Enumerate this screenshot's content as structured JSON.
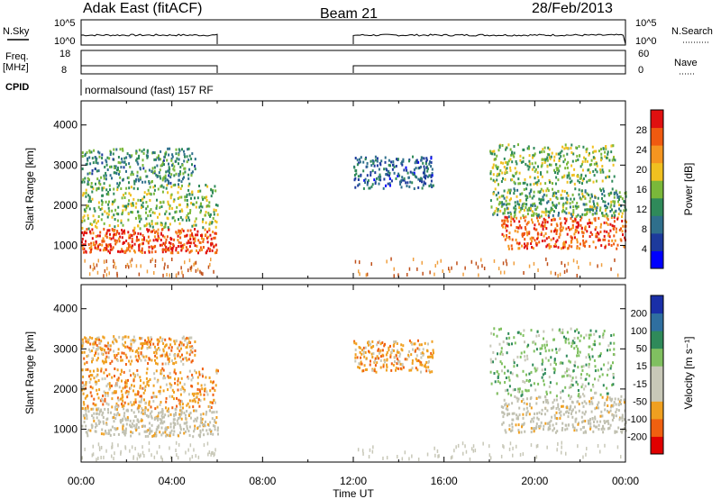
{
  "header": {
    "radar": "Adak East (fitACF)",
    "beam": "Beam 21",
    "date": "28/Feb/2013"
  },
  "top_panels": {
    "nsky_label": "N.Sky",
    "nsky_ticks": [
      "10^5",
      "10^0"
    ],
    "nsearch_label": "N.Search",
    "nsearch_ticks": [
      "10^5",
      "10^0"
    ],
    "freq_label_1": "Freq.",
    "freq_label_2": "[MHz]",
    "freq_ticks": [
      "18",
      "8"
    ],
    "nave_label": "Nave",
    "nave_ticks": [
      "60",
      "0"
    ],
    "cpid_label": "CPID",
    "cpid_text": "normalsound (fast) 157 RF"
  },
  "colors": {
    "power_scale": [
      "#0000ff",
      "#1d3a9c",
      "#2f6f8c",
      "#2f8a5a",
      "#7ab83a",
      "#f0c020",
      "#f59520",
      "#f05a10",
      "#e01010"
    ],
    "velocity_scale": [
      "#e00000",
      "#f06010",
      "#f0a020",
      "#c8c8b8",
      "#c8c8b8",
      "#80c060",
      "#2f8a5a",
      "#2f6fa0",
      "#1a2fa8"
    ],
    "ground_scatter": "#c0c0b0",
    "grid_line": "#000000"
  },
  "chart_data": [
    {
      "type": "heatmap",
      "panel": "power",
      "xlabel": "",
      "ylabel": "Slant Range [km]",
      "xlim": [
        "00:00",
        "24:00"
      ],
      "ylim": [
        180,
        4600
      ],
      "yticks": [
        "4000",
        "3000",
        "2000",
        "1000"
      ],
      "colorbar_label": "Power [dB]",
      "colorbar_ticks": [
        "28",
        "24",
        "20",
        "16",
        "12",
        "8",
        "4"
      ],
      "data_gap": [
        "06:00",
        "12:00"
      ],
      "echo_regions": [
        {
          "t0": 0.0,
          "t1": 6.0,
          "r0": 800,
          "r1": 1400,
          "level": 26
        },
        {
          "t0": 0.0,
          "t1": 6.0,
          "r0": 1400,
          "r1": 2500,
          "level": 14
        },
        {
          "t0": 0.0,
          "t1": 5.0,
          "r0": 2500,
          "r1": 3400,
          "level": 10
        },
        {
          "t0": 18.5,
          "t1": 24.0,
          "r0": 900,
          "r1": 1700,
          "level": 25
        },
        {
          "t0": 18.0,
          "t1": 24.0,
          "r0": 1700,
          "r1": 2400,
          "level": 12
        },
        {
          "t0": 18.0,
          "t1": 23.5,
          "r0": 2500,
          "r1": 3500,
          "level": 14
        },
        {
          "t0": 12.0,
          "t1": 15.5,
          "r0": 2400,
          "r1": 3200,
          "level": 6
        }
      ]
    },
    {
      "type": "heatmap",
      "panel": "velocity",
      "xlabel": "Time UT",
      "ylabel": "Slant Range [km]",
      "xlim": [
        "00:00",
        "24:00"
      ],
      "ylim": [
        180,
        4600
      ],
      "xticks": [
        "00:00",
        "04:00",
        "08:00",
        "12:00",
        "16:00",
        "20:00",
        "00:00"
      ],
      "yticks": [
        "4000",
        "3000",
        "2000",
        "1000"
      ],
      "colorbar_label": "Velocity [m s⁻¹]",
      "colorbar_ticks": [
        "200",
        "100",
        "50",
        "15",
        "-15",
        "-50",
        "-100",
        "-200"
      ],
      "data_gap": [
        "06:00",
        "12:00"
      ],
      "echo_regions": [
        {
          "t0": 0.0,
          "t1": 6.0,
          "r0": 800,
          "r1": 1500,
          "velocity": 0
        },
        {
          "t0": 0.0,
          "t1": 6.0,
          "r0": 1500,
          "r1": 2500,
          "velocity": -40
        },
        {
          "t0": 0.0,
          "t1": 5.0,
          "r0": 2600,
          "r1": 3300,
          "velocity": -40
        },
        {
          "t0": 18.5,
          "t1": 24.0,
          "r0": 900,
          "r1": 1800,
          "velocity": 0
        },
        {
          "t0": 18.0,
          "t1": 23.5,
          "r0": 1800,
          "r1": 3500,
          "velocity": 10
        },
        {
          "t0": 12.0,
          "t1": 15.5,
          "r0": 2400,
          "r1": 3200,
          "velocity": -30
        }
      ]
    }
  ]
}
